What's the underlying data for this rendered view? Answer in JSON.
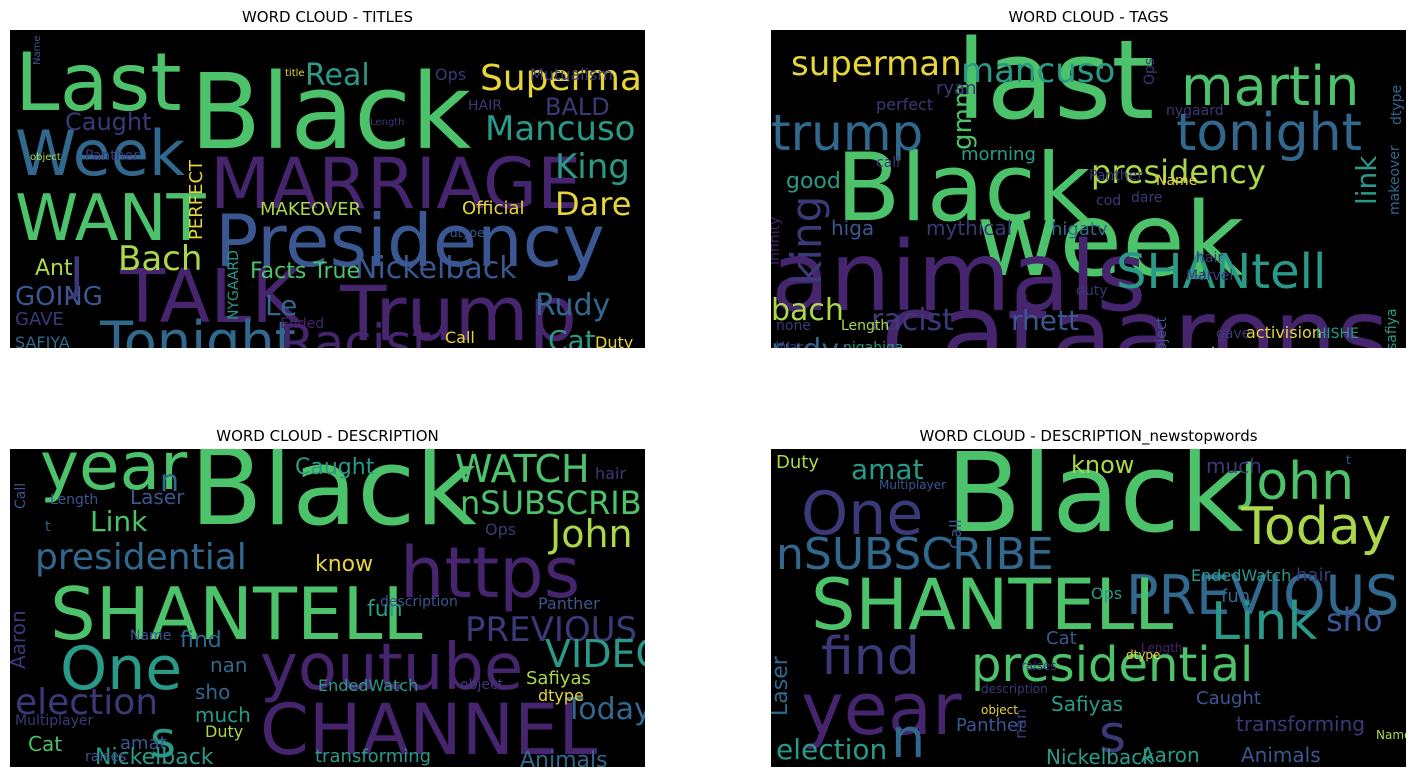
{
  "panels": [
    {
      "title": "WORD CLOUD - TITLES",
      "words": [
        {
          "t": "Black",
          "c": "#4cc26b"
        },
        {
          "t": "MARRIAGE",
          "c": "#46246e"
        },
        {
          "t": "Presidency",
          "c": "#3b5791"
        },
        {
          "t": "Last",
          "c": "#4cc26b"
        },
        {
          "t": "Week",
          "c": "#31688e"
        },
        {
          "t": "WANT",
          "c": "#4cc26b"
        },
        {
          "t": "TALK",
          "c": "#46246e"
        },
        {
          "t": "Trump",
          "c": "#46246e"
        },
        {
          "t": "Tonight",
          "c": "#31688e"
        },
        {
          "t": "Racist",
          "c": "#46246e"
        },
        {
          "t": "Superman",
          "c": "#e7d43a"
        },
        {
          "t": "Mancuso",
          "c": "#2a9a88"
        },
        {
          "t": "King",
          "c": "#2a9a88"
        },
        {
          "t": "Dare",
          "c": "#e7d43a"
        },
        {
          "t": "Real",
          "c": "#2a9a88"
        },
        {
          "t": "BALD",
          "c": "#3b3978"
        },
        {
          "t": "Caught",
          "c": "#3b3978"
        },
        {
          "t": "Nickelback",
          "c": "#3b5791"
        },
        {
          "t": "Bach",
          "c": "#aad84a"
        },
        {
          "t": "Rudy",
          "c": "#31688e"
        },
        {
          "t": "Cat",
          "c": "#2a9a88"
        },
        {
          "t": "Lyrics",
          "c": "#4cc26b"
        },
        {
          "t": "Fake",
          "c": "#31688e"
        },
        {
          "t": "Le",
          "c": "#31688e"
        },
        {
          "t": "Facts True",
          "c": "#4cc26b"
        },
        {
          "t": "GOING",
          "c": "#3b5791"
        },
        {
          "t": "Ant",
          "c": "#aad84a"
        },
        {
          "t": "J",
          "c": "#3b3978"
        },
        {
          "t": "GAVE",
          "c": "#3b3978"
        },
        {
          "t": "SAFIYA",
          "c": "#31688e"
        },
        {
          "t": "Laser",
          "c": "#2a9a88"
        },
        {
          "t": "Official",
          "c": "#e7d43a"
        },
        {
          "t": "MAKEOVER",
          "c": "#aad84a"
        },
        {
          "t": "PERFECT",
          "c": "#e7d43a",
          "r": -90
        },
        {
          "t": "NYGAARD",
          "c": "#2a9a88",
          "r": -90
        },
        {
          "t": "HAIR",
          "c": "#3b3978"
        },
        {
          "t": "Mutualism",
          "c": "#3b3978"
        },
        {
          "t": "Ops",
          "c": "#3b3978"
        },
        {
          "t": "Panther",
          "c": "#3b3978"
        },
        {
          "t": "Duty",
          "c": "#e7d43a"
        },
        {
          "t": "Call",
          "c": "#e7d43a"
        },
        {
          "t": "Ended",
          "c": "#46246e"
        },
        {
          "t": "Length",
          "c": "#3b3978"
        },
        {
          "t": "object",
          "c": "#aad84a"
        },
        {
          "t": "title",
          "c": "#e7d43a"
        },
        {
          "t": "dtype",
          "c": "#3b5791"
        },
        {
          "t": "Multipla",
          "c": "#e7d43a"
        },
        {
          "t": "Name",
          "c": "#3b5791",
          "r": -90
        }
      ]
    },
    {
      "title": "WORD CLOUD - TAGS",
      "words": [
        {
          "t": "last",
          "c": "#4cc26b"
        },
        {
          "t": "Black",
          "c": "#4cc26b"
        },
        {
          "t": "week",
          "c": "#4cc26b"
        },
        {
          "t": "animals",
          "c": "#46246e"
        },
        {
          "t": "cat",
          "c": "#46246e"
        },
        {
          "t": "aarons",
          "c": "#46246e"
        },
        {
          "t": "martin",
          "c": "#4cc26b"
        },
        {
          "t": "tonight",
          "c": "#31688e"
        },
        {
          "t": "trump",
          "c": "#31688e"
        },
        {
          "t": "superman",
          "c": "#e7d43a"
        },
        {
          "t": "mancuso",
          "c": "#2a9a88"
        },
        {
          "t": "presidency",
          "c": "#aad84a"
        },
        {
          "t": "SHANtell",
          "c": "#2a9a88"
        },
        {
          "t": "king",
          "c": "#3b3978",
          "r": -90
        },
        {
          "t": "bach",
          "c": "#aad84a"
        },
        {
          "t": "racist",
          "c": "#3b3978"
        },
        {
          "t": "rhett",
          "c": "#3b5791"
        },
        {
          "t": "rudy",
          "c": "#31688e"
        },
        {
          "t": "gmm",
          "c": "#4cc26b",
          "r": -90
        },
        {
          "t": "link",
          "c": "#2a9a88",
          "r": -90
        },
        {
          "t": "good",
          "c": "#2a9a88"
        },
        {
          "t": "morning",
          "c": "#2a9a88"
        },
        {
          "t": "higa",
          "c": "#3b5791"
        },
        {
          "t": "mythical",
          "c": "#3b3978"
        },
        {
          "t": "higatv",
          "c": "#31688e"
        },
        {
          "t": "ryan",
          "c": "#3b3978"
        },
        {
          "t": "perfect",
          "c": "#3b3978"
        },
        {
          "t": "call",
          "c": "#3b3978"
        },
        {
          "t": "Panther",
          "c": "#3b3978"
        },
        {
          "t": "Name",
          "c": "#e7d43a"
        },
        {
          "t": "cod",
          "c": "#3b3978"
        },
        {
          "t": "dare",
          "c": "#3b3978"
        },
        {
          "t": "Marvel",
          "c": "#3b3978"
        },
        {
          "t": "hair",
          "c": "#3b3978"
        },
        {
          "t": "nygaard",
          "c": "#3b3978"
        },
        {
          "t": "dtype",
          "c": "#31688e",
          "r": -90
        },
        {
          "t": "makeover",
          "c": "#31688e",
          "r": -90
        },
        {
          "t": "safiya",
          "c": "#2a9a88",
          "r": -90
        },
        {
          "t": "duty",
          "c": "#3b3978"
        },
        {
          "t": "gave",
          "c": "#3b3978"
        },
        {
          "t": "activision",
          "c": "#e7d43a"
        },
        {
          "t": "HISHE",
          "c": "#2a9a88"
        },
        {
          "t": "none",
          "c": "#3b3978"
        },
        {
          "t": "Length",
          "c": "#aad84a"
        },
        {
          "t": "War",
          "c": "#3b3978"
        },
        {
          "t": "nigahiga",
          "c": "#2a9a88"
        },
        {
          "t": "object",
          "c": "#3b5791",
          "r": -90
        },
        {
          "t": "tags",
          "c": "#aad84a"
        },
        {
          "t": "Infinity",
          "c": "#46246e",
          "r": -90
        },
        {
          "t": "Ops",
          "c": "#3b3978",
          "r": -90
        }
      ]
    },
    {
      "title": "WORD CLOUD - DESCRIPTION",
      "words": [
        {
          "t": "Black",
          "c": "#4cc26b"
        },
        {
          "t": "year",
          "c": "#4cc26b"
        },
        {
          "t": "n",
          "c": "#31688e"
        },
        {
          "t": "https",
          "c": "#46246e"
        },
        {
          "t": "SHANTELL",
          "c": "#4cc26b"
        },
        {
          "t": "One",
          "c": "#2a9a88"
        },
        {
          "t": "youtube",
          "c": "#46246e"
        },
        {
          "t": "CHANNEL",
          "c": "#46246e"
        },
        {
          "t": "s",
          "c": "#2a9a88"
        },
        {
          "t": "presidential",
          "c": "#31688e"
        },
        {
          "t": "election",
          "c": "#3b3978"
        },
        {
          "t": "WATCH",
          "c": "#4cc26b"
        },
        {
          "t": "nSUBSCRIBE",
          "c": "#4cc26b"
        },
        {
          "t": "John",
          "c": "#aad84a"
        },
        {
          "t": "PREVIOUS",
          "c": "#3b3978"
        },
        {
          "t": "VIDEO",
          "c": "#2a9a88"
        },
        {
          "t": "Today",
          "c": "#31688e"
        },
        {
          "t": "Caught",
          "c": "#2a9a88"
        },
        {
          "t": "Laser",
          "c": "#3b5791"
        },
        {
          "t": "Link",
          "c": "#4cc26b"
        },
        {
          "t": "know",
          "c": "#e7d43a"
        },
        {
          "t": "fun",
          "c": "#2a9a88"
        },
        {
          "t": "find",
          "c": "#31688e"
        },
        {
          "t": "nan",
          "c": "#31688e"
        },
        {
          "t": "sho",
          "c": "#31688e"
        },
        {
          "t": "much",
          "c": "#2a9a88"
        },
        {
          "t": "Duty",
          "c": "#aad84a"
        },
        {
          "t": "amat",
          "c": "#3b5791"
        },
        {
          "t": "Cat",
          "c": "#4cc26b"
        },
        {
          "t": "Nickelback",
          "c": "#2a9a88"
        },
        {
          "t": "transforming",
          "c": "#2a9a88"
        },
        {
          "t": "Animals",
          "c": "#31688e"
        },
        {
          "t": "Safiyas",
          "c": "#aad84a"
        },
        {
          "t": "dtype",
          "c": "#e7d43a"
        },
        {
          "t": "EndedWatch",
          "c": "#2a9a88"
        },
        {
          "t": "Panther",
          "c": "#3b5791"
        },
        {
          "t": "description",
          "c": "#3b5791"
        },
        {
          "t": "Ops",
          "c": "#3b3978"
        },
        {
          "t": "hair",
          "c": "#3b3978"
        },
        {
          "t": "Name",
          "c": "#3b5791"
        },
        {
          "t": "object",
          "c": "#3b3978"
        },
        {
          "t": "Multiplayer",
          "c": "#3b3978"
        },
        {
          "t": "raises",
          "c": "#3b5791"
        },
        {
          "t": "Length",
          "c": "#3b5791"
        },
        {
          "t": "t",
          "c": "#3b5791"
        },
        {
          "t": "Call",
          "c": "#3b5791",
          "r": -90
        },
        {
          "t": "Aaron",
          "c": "#3b3978",
          "r": -90
        }
      ]
    },
    {
      "title": "WORD CLOUD - DESCRIPTION_newstopwords",
      "words": [
        {
          "t": "Black",
          "c": "#4cc26b"
        },
        {
          "t": "One",
          "c": "#3b3978"
        },
        {
          "t": "John",
          "c": "#4cc26b"
        },
        {
          "t": "Today",
          "c": "#aad84a"
        },
        {
          "t": "nSUBSCRIBE",
          "c": "#31688e"
        },
        {
          "t": "PREVIOUS",
          "c": "#31688e"
        },
        {
          "t": "SHANTELL",
          "c": "#4cc26b"
        },
        {
          "t": "presidential",
          "c": "#4cc26b"
        },
        {
          "t": "Link",
          "c": "#2a9a88"
        },
        {
          "t": "sho",
          "c": "#3b5791"
        },
        {
          "t": "find",
          "c": "#3b3978"
        },
        {
          "t": "year",
          "c": "#46246e"
        },
        {
          "t": "n",
          "c": "#31688e"
        },
        {
          "t": "s",
          "c": "#3b3978"
        },
        {
          "t": "election",
          "c": "#2a9a88"
        },
        {
          "t": "Nickelback",
          "c": "#2a9a88"
        },
        {
          "t": "Aaron",
          "c": "#2a9a88"
        },
        {
          "t": "Animals",
          "c": "#3b5791"
        },
        {
          "t": "transforming",
          "c": "#3b3978"
        },
        {
          "t": "Caught",
          "c": "#3b5791"
        },
        {
          "t": "Panther",
          "c": "#3b5791"
        },
        {
          "t": "Safiyas",
          "c": "#2a9a88"
        },
        {
          "t": "fun",
          "c": "#31688e"
        },
        {
          "t": "nan",
          "c": "#3b3978",
          "r": -90
        },
        {
          "t": "Laser",
          "c": "#31688e",
          "r": -90
        },
        {
          "t": "Cat",
          "c": "#3b5791"
        },
        {
          "t": "amat",
          "c": "#2a9a88"
        },
        {
          "t": "know",
          "c": "#aad84a"
        },
        {
          "t": "much",
          "c": "#3b3978"
        },
        {
          "t": "Duty",
          "c": "#aad84a"
        },
        {
          "t": "Ops",
          "c": "#2a9a88"
        },
        {
          "t": "EndedWatch",
          "c": "#2a9a88"
        },
        {
          "t": "hair",
          "c": "#3b3978"
        },
        {
          "t": "dtype",
          "c": "#e7d43a"
        },
        {
          "t": "raises",
          "c": "#3b3978"
        },
        {
          "t": "description",
          "c": "#3b3978"
        },
        {
          "t": "object",
          "c": "#e7d43a"
        },
        {
          "t": "Length",
          "c": "#46246e"
        },
        {
          "t": "Multiplayer",
          "c": "#3b5791"
        },
        {
          "t": "Name",
          "c": "#aad84a"
        },
        {
          "t": "t",
          "c": "#3b5791"
        },
        {
          "t": "Call",
          "c": "#3b5791",
          "r": -90
        }
      ]
    }
  ]
}
